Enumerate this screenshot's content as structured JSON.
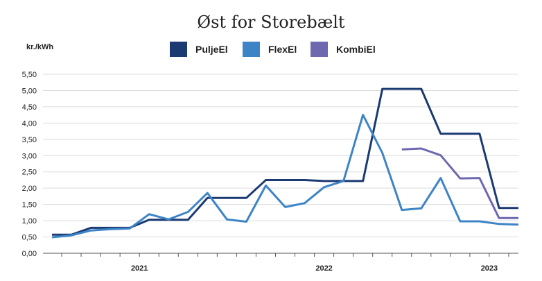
{
  "chart_data": {
    "type": "line",
    "title": "Øst for Storebælt",
    "ylabel": "kr./kWh",
    "ylim": [
      0,
      5.5
    ],
    "y_ticks": [
      "0,00",
      "0,50",
      "1,00",
      "1,50",
      "2,00",
      "2,50",
      "3,00",
      "3,50",
      "4,00",
      "4,50",
      "5,00",
      "5,50"
    ],
    "x_count": 25,
    "year_labels": [
      {
        "label": "2021",
        "x_center": 4.5
      },
      {
        "label": "2022",
        "x_center": 14.0
      },
      {
        "label": "2023",
        "x_center": 22.5
      }
    ],
    "grid": true,
    "legend_position": "top",
    "series": [
      {
        "name": "PuljeEl",
        "color": "#1b3a72",
        "values": [
          0.57,
          0.57,
          0.78,
          0.78,
          0.78,
          1.03,
          1.03,
          1.03,
          1.7,
          1.7,
          1.7,
          2.25,
          2.25,
          2.25,
          2.22,
          2.22,
          2.22,
          5.05,
          5.05,
          5.05,
          3.67,
          3.67,
          3.67,
          1.39,
          1.39
        ]
      },
      {
        "name": "FlexEl",
        "color": "#3d84c6",
        "values": [
          0.49,
          0.55,
          0.7,
          0.74,
          0.76,
          1.2,
          1.04,
          1.27,
          1.85,
          1.04,
          0.97,
          2.08,
          1.42,
          1.54,
          2.03,
          2.22,
          4.25,
          3.08,
          1.33,
          1.38,
          2.31,
          0.98,
          0.98,
          0.9,
          0.88
        ]
      },
      {
        "name": "KombiEl",
        "color": "#6d68b0",
        "values": [
          null,
          null,
          null,
          null,
          null,
          null,
          null,
          null,
          null,
          null,
          null,
          null,
          null,
          null,
          null,
          null,
          null,
          null,
          3.19,
          3.22,
          3.01,
          2.3,
          2.31,
          1.08,
          1.08
        ]
      }
    ]
  }
}
